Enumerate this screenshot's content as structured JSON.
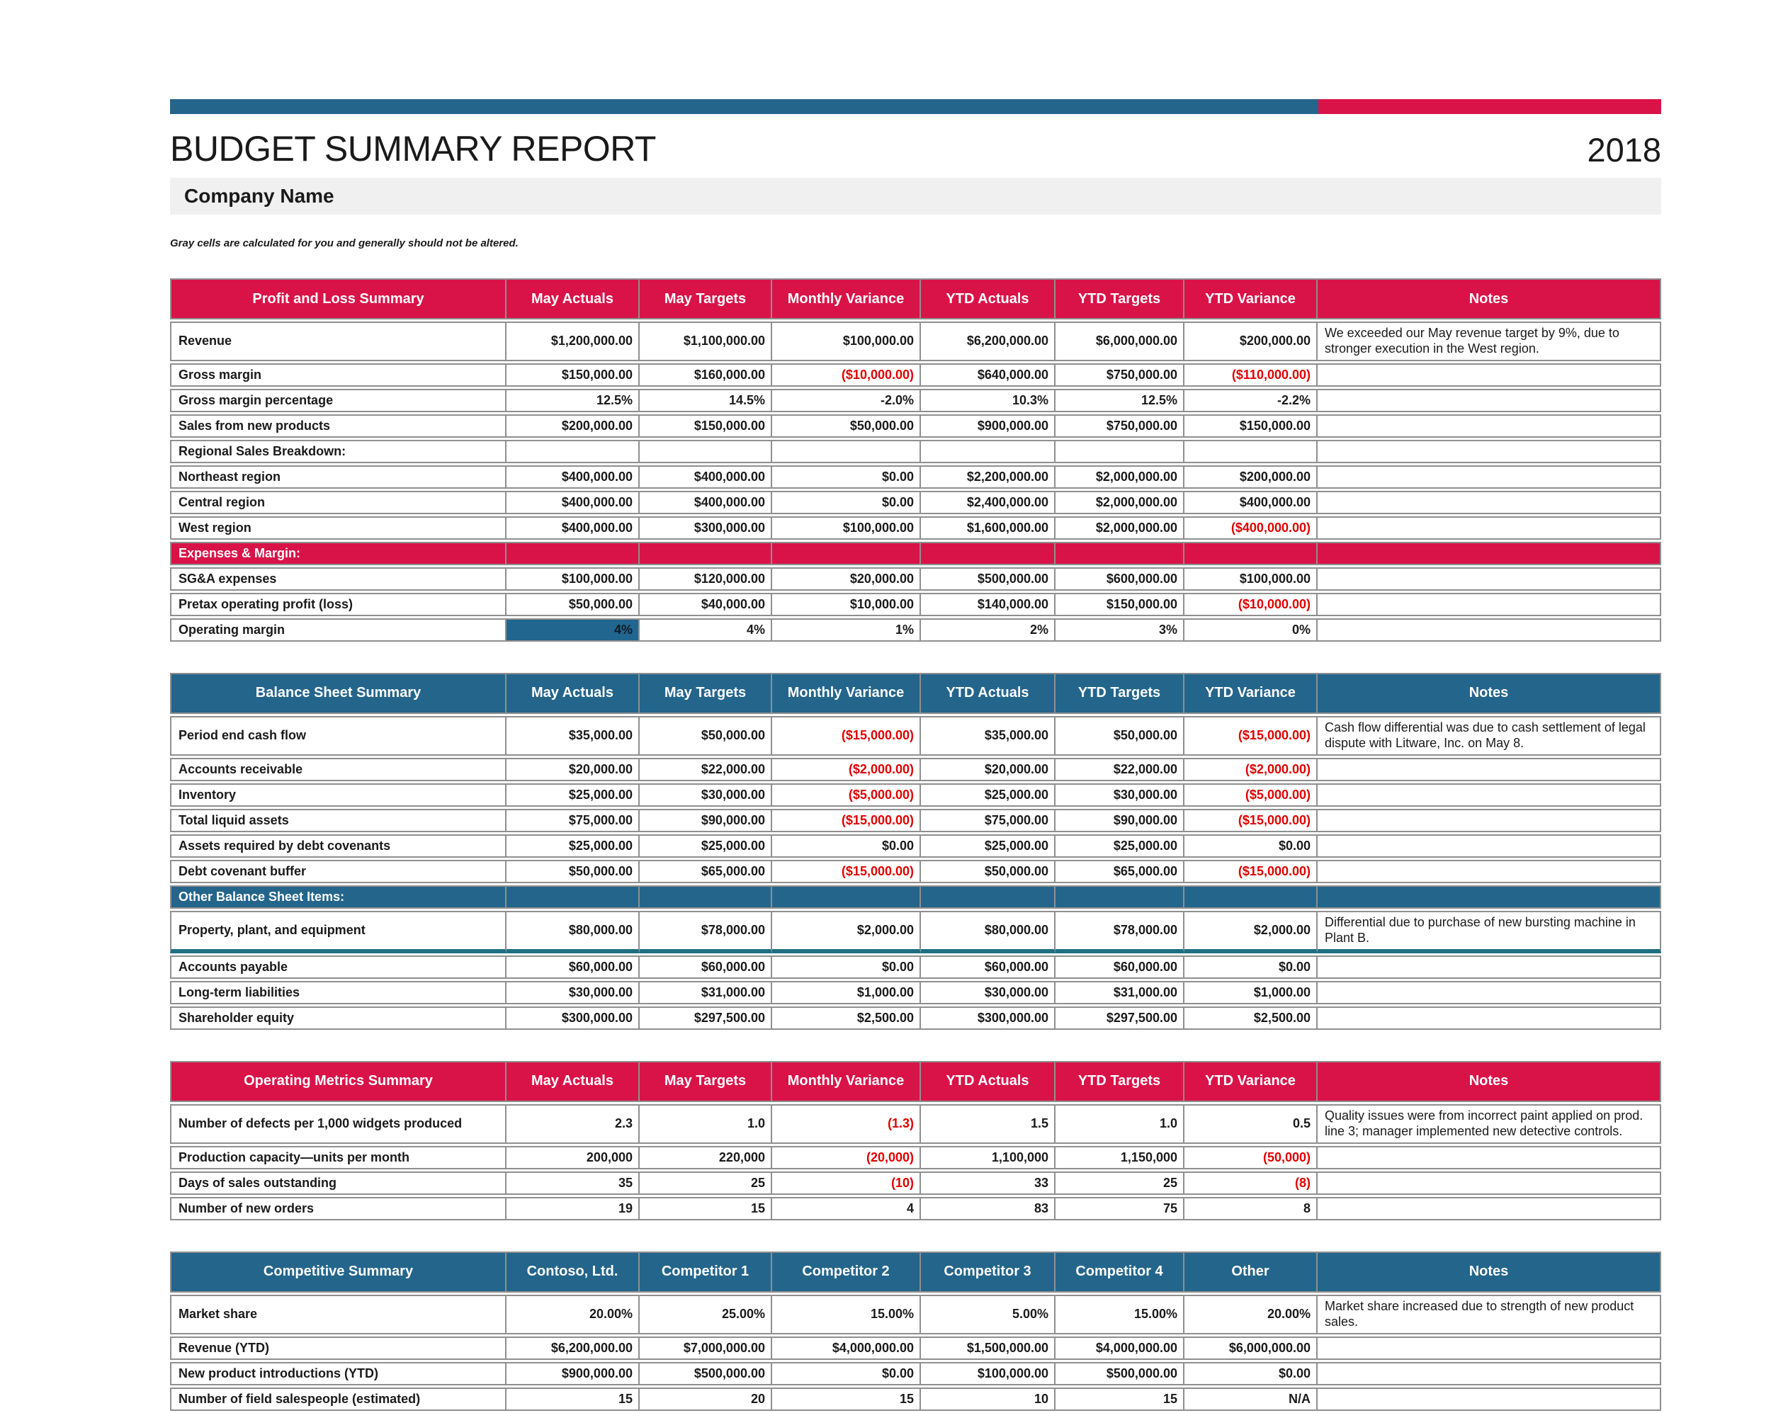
{
  "colors": {
    "accent_pink": "#D91348",
    "accent_blue": "#24658B",
    "highlight_cell_blue": "#21668F",
    "teal_divider": "#1E6F82",
    "negative_red": "#E00000",
    "border_gray": "#8F8F8F",
    "company_bar_bg": "#F0F0F0"
  },
  "header": {
    "title": "BUDGET SUMMARY REPORT",
    "year": "2018",
    "company": "Company Name",
    "note": "Gray cells are calculated for you and generally should not be altered."
  },
  "tables": [
    {
      "id": "profit-and-loss-summary",
      "title": "Profit and Loss Summary",
      "accent": "pink",
      "notes_header_align": "center",
      "columns": [
        "May Actuals",
        "May Targets",
        "Monthly Variance",
        "YTD Actuals",
        "YTD Targets",
        "YTD Variance",
        "Notes"
      ],
      "rows": [
        {
          "label": "Revenue",
          "values": [
            "$1,200,000.00",
            "$1,100,000.00",
            "$100,000.00",
            "$6,200,000.00",
            "$6,000,000.00",
            "$200,000.00"
          ],
          "note": "We exceeded our May revenue target by 9%, due to stronger execution in the West region."
        },
        {
          "label": "Gross margin",
          "values": [
            "$150,000.00",
            "$160,000.00",
            "($10,000.00)",
            "$640,000.00",
            "$750,000.00",
            "($110,000.00)"
          ],
          "note": ""
        },
        {
          "label": "Gross margin percentage",
          "values": [
            "12.5%",
            "14.5%",
            "-2.0%",
            "10.3%",
            "12.5%",
            "-2.2%"
          ],
          "note": ""
        },
        {
          "label": "Sales from new products",
          "values": [
            "$200,000.00",
            "$150,000.00",
            "$50,000.00",
            "$900,000.00",
            "$750,000.00",
            "$150,000.00"
          ],
          "note": ""
        },
        {
          "label": "Regional Sales Breakdown:",
          "values": [
            "",
            "",
            "",
            "",
            "",
            ""
          ],
          "note": ""
        },
        {
          "label": "Northeast region",
          "values": [
            "$400,000.00",
            "$400,000.00",
            "$0.00",
            "$2,200,000.00",
            "$2,000,000.00",
            "$200,000.00"
          ],
          "note": ""
        },
        {
          "label": "Central region",
          "values": [
            "$400,000.00",
            "$400,000.00",
            "$0.00",
            "$2,400,000.00",
            "$2,000,000.00",
            "$400,000.00"
          ],
          "note": ""
        },
        {
          "label": "West region",
          "values": [
            "$400,000.00",
            "$300,000.00",
            "$100,000.00",
            "$1,600,000.00",
            "$2,000,000.00",
            "($400,000.00)"
          ],
          "note": ""
        },
        {
          "label": "Expenses & Margin:",
          "section": true
        },
        {
          "label": "SG&A expenses",
          "values": [
            "$100,000.00",
            "$120,000.00",
            "$20,000.00",
            "$500,000.00",
            "$600,000.00",
            "$100,000.00"
          ],
          "note": ""
        },
        {
          "label": "Pretax operating profit (loss)",
          "values": [
            "$50,000.00",
            "$40,000.00",
            "$10,000.00",
            "$140,000.00",
            "$150,000.00",
            "($10,000.00)"
          ],
          "note": ""
        },
        {
          "label": "Operating margin",
          "values": [
            "4%",
            "4%",
            "1%",
            "2%",
            "3%",
            "0%"
          ],
          "note": "",
          "highlight_value": 0
        }
      ]
    },
    {
      "id": "balance-sheet-summary",
      "title": "Balance Sheet Summary",
      "accent": "blue",
      "notes_header_align": "center",
      "columns": [
        "May Actuals",
        "May Targets",
        "Monthly Variance",
        "YTD Actuals",
        "YTD Targets",
        "YTD Variance",
        "Notes"
      ],
      "rows": [
        {
          "label": "Period end cash flow",
          "values": [
            "$35,000.00",
            "$50,000.00",
            "($15,000.00)",
            "$35,000.00",
            "$50,000.00",
            "($15,000.00)"
          ],
          "note": "Cash flow differential was due to cash settlement of legal dispute with Litware, Inc. on May 8."
        },
        {
          "label": "Accounts receivable",
          "values": [
            "$20,000.00",
            "$22,000.00",
            "($2,000.00)",
            "$20,000.00",
            "$22,000.00",
            "($2,000.00)"
          ],
          "note": ""
        },
        {
          "label": "Inventory",
          "values": [
            "$25,000.00",
            "$30,000.00",
            "($5,000.00)",
            "$25,000.00",
            "$30,000.00",
            "($5,000.00)"
          ],
          "note": ""
        },
        {
          "label": "Total liquid assets",
          "values": [
            "$75,000.00",
            "$90,000.00",
            "($15,000.00)",
            "$75,000.00",
            "$90,000.00",
            "($15,000.00)"
          ],
          "note": ""
        },
        {
          "label": "Assets required by debt covenants",
          "values": [
            "$25,000.00",
            "$25,000.00",
            "$0.00",
            "$25,000.00",
            "$25,000.00",
            "$0.00"
          ],
          "note": ""
        },
        {
          "label": "Debt covenant buffer",
          "values": [
            "$50,000.00",
            "$65,000.00",
            "($15,000.00)",
            "$50,000.00",
            "$65,000.00",
            "($15,000.00)"
          ],
          "note": ""
        },
        {
          "label": "Other Balance Sheet Items:",
          "section": true
        },
        {
          "label": "Property, plant, and equipment",
          "values": [
            "$80,000.00",
            "$78,000.00",
            "$2,000.00",
            "$80,000.00",
            "$78,000.00",
            "$2,000.00"
          ],
          "note": "Differential due to purchase of new bursting machine in Plant B.",
          "divider": true
        },
        {
          "label": "Accounts payable",
          "values": [
            "$60,000.00",
            "$60,000.00",
            "$0.00",
            "$60,000.00",
            "$60,000.00",
            "$0.00"
          ],
          "note": ""
        },
        {
          "label": "Long-term liabilities",
          "values": [
            "$30,000.00",
            "$31,000.00",
            "$1,000.00",
            "$30,000.00",
            "$31,000.00",
            "$1,000.00"
          ],
          "note": ""
        },
        {
          "label": "Shareholder equity",
          "values": [
            "$300,000.00",
            "$297,500.00",
            "$2,500.00",
            "$300,000.00",
            "$297,500.00",
            "$2,500.00"
          ],
          "note": ""
        }
      ]
    },
    {
      "id": "operating-metrics-summary",
      "title": "Operating Metrics Summary",
      "accent": "pink",
      "notes_header_align": "left",
      "columns": [
        "May Actuals",
        "May Targets",
        "Monthly Variance",
        "YTD Actuals",
        "YTD Targets",
        "YTD Variance",
        "Notes"
      ],
      "rows": [
        {
          "label": "Number of defects per 1,000 widgets produced",
          "values": [
            "2.3",
            "1.0",
            "(1.3)",
            "1.5",
            "1.0",
            "0.5"
          ],
          "note": "Quality issues were from incorrect paint applied on prod. line 3; manager implemented new detective controls."
        },
        {
          "label": "Production capacity—units per month",
          "values": [
            "200,000",
            "220,000",
            "(20,000)",
            "1,100,000",
            "1,150,000",
            "(50,000)"
          ],
          "note": ""
        },
        {
          "label": "Days of sales outstanding",
          "values": [
            "35",
            "25",
            "(10)",
            "33",
            "25",
            "(8)"
          ],
          "note": ""
        },
        {
          "label": "Number of new orders",
          "values": [
            "19",
            "15",
            "4",
            "83",
            "75",
            "8"
          ],
          "note": ""
        }
      ]
    },
    {
      "id": "competitive-summary",
      "title": "Competitive Summary",
      "accent": "blue",
      "notes_header_align": "left",
      "columns": [
        "Contoso, Ltd.",
        "Competitor 1",
        "Competitor 2",
        "Competitor 3",
        "Competitor 4",
        "Other",
        "Notes"
      ],
      "rows": [
        {
          "label": "Market share",
          "values": [
            "20.00%",
            "25.00%",
            "15.00%",
            "5.00%",
            "15.00%",
            "20.00%"
          ],
          "note": "Market share increased due to strength of new product sales."
        },
        {
          "label": "Revenue (YTD)",
          "values": [
            "$6,200,000.00",
            "$7,000,000.00",
            "$4,000,000.00",
            "$1,500,000.00",
            "$4,000,000.00",
            "$6,000,000.00"
          ],
          "note": ""
        },
        {
          "label": "New product introductions (YTD)",
          "values": [
            "$900,000.00",
            "$500,000.00",
            "$0.00",
            "$100,000.00",
            "$500,000.00",
            "$0.00"
          ],
          "note": ""
        },
        {
          "label": "Number of field salespeople (estimated)",
          "values": [
            "15",
            "20",
            "15",
            "10",
            "15",
            "N/A"
          ],
          "note": ""
        }
      ]
    }
  ]
}
